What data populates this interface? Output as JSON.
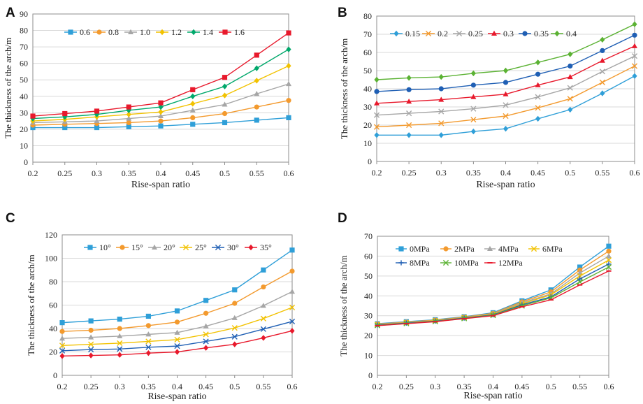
{
  "chart_data": [
    {
      "type": "line",
      "panel": "A",
      "title": "",
      "xlabel": "Rise-span ratio",
      "ylabel": "The thickness of the arch/m",
      "x": [
        0.2,
        0.25,
        0.3,
        0.35,
        0.4,
        0.45,
        0.5,
        0.55,
        0.6
      ],
      "xticks": [
        "0.2",
        "0.25",
        "0.3",
        "0.35",
        "0.4",
        "0.45",
        "0.5",
        "0.55",
        "0.6"
      ],
      "ylim": [
        0,
        90
      ],
      "yticks": [
        0,
        10,
        20,
        30,
        40,
        50,
        60,
        70,
        80,
        90
      ],
      "legend_position": "top-left",
      "series": [
        {
          "name": "0.6",
          "color": "#2f9fd8",
          "marker": "square",
          "values": [
            21,
            21,
            21,
            21.5,
            22,
            23,
            24,
            25.5,
            27
          ]
        },
        {
          "name": "0.8",
          "color": "#f39a2e",
          "marker": "circle",
          "values": [
            22.5,
            23,
            23.5,
            24,
            25,
            27,
            29.5,
            33.5,
            37.5
          ]
        },
        {
          "name": "1.0",
          "color": "#a6a6a6",
          "marker": "triangle",
          "values": [
            24,
            24.5,
            25,
            26.5,
            28,
            31.5,
            35,
            41.5,
            47.5
          ]
        },
        {
          "name": "1.2",
          "color": "#f2c200",
          "marker": "diamond",
          "values": [
            25,
            26,
            27.5,
            29,
            30.5,
            35.5,
            40.5,
            49.5,
            58.5
          ]
        },
        {
          "name": "1.4",
          "color": "#00a86b",
          "marker": "diamond",
          "values": [
            26.5,
            27.5,
            29,
            31.5,
            33.5,
            40,
            46,
            57,
            68.5
          ]
        },
        {
          "name": "1.6",
          "color": "#e8192c",
          "marker": "square",
          "values": [
            28,
            29.5,
            31,
            33.5,
            36,
            44,
            51.5,
            65,
            78.5
          ]
        }
      ]
    },
    {
      "type": "line",
      "panel": "B",
      "title": "",
      "xlabel": "Rise-span  ratio",
      "ylabel": "The thickness of the arch/m",
      "x": [
        0.2,
        0.25,
        0.3,
        0.35,
        0.4,
        0.45,
        0.5,
        0.55,
        0.6
      ],
      "xticks": [
        "0.2",
        "0.25",
        "0.3",
        "0.35",
        "0.4",
        "0.45",
        "0.5",
        "0.55",
        "0.6"
      ],
      "ylim": [
        0,
        80
      ],
      "yticks": [
        0,
        10,
        20,
        30,
        40,
        50,
        60,
        70,
        80
      ],
      "legend_position": "top-left",
      "series": [
        {
          "name": "0.15",
          "color": "#2f9fd8",
          "marker": "diamond",
          "values": [
            14.5,
            14.5,
            14.5,
            16.5,
            18,
            23.5,
            28.5,
            37.5,
            47
          ]
        },
        {
          "name": "0.2",
          "color": "#f39a2e",
          "marker": "x",
          "values": [
            19,
            20,
            21,
            23,
            25,
            29.5,
            34.5,
            43.5,
            52.5
          ]
        },
        {
          "name": "0.25",
          "color": "#a6a6a6",
          "marker": "x",
          "values": [
            25.5,
            26.5,
            27.5,
            29,
            31,
            35.5,
            40.5,
            49.5,
            58
          ]
        },
        {
          "name": "0.3",
          "color": "#e8192c",
          "marker": "triangle",
          "values": [
            32,
            33,
            34,
            35.5,
            37,
            42,
            46.5,
            55.5,
            63.5
          ]
        },
        {
          "name": "0.35",
          "color": "#1f5fb4",
          "marker": "circle",
          "values": [
            38.5,
            39.5,
            40,
            42,
            43.5,
            48,
            52.5,
            61,
            69.5
          ]
        },
        {
          "name": "0.4",
          "color": "#5bb233",
          "marker": "diamond",
          "values": [
            45,
            46,
            46.5,
            48.5,
            50,
            54.5,
            59,
            67,
            75.5
          ]
        }
      ]
    },
    {
      "type": "line",
      "panel": "C",
      "title": "",
      "xlabel": "Rise-span  ratio",
      "ylabel": "The thickness of the arch/m",
      "x": [
        0.2,
        0.25,
        0.3,
        0.35,
        0.4,
        0.45,
        0.5,
        0.55,
        0.6
      ],
      "xticks": [
        "0.2",
        "0.25",
        "0.3",
        "0.35",
        "0.4",
        "0.45",
        "0.5",
        "0.55",
        "0.6"
      ],
      "ylim": [
        0,
        120
      ],
      "yticks": [
        0,
        20,
        40,
        60,
        80,
        100,
        120
      ],
      "legend_position": "top-left",
      "series": [
        {
          "name": "10°",
          "color": "#2f9fd8",
          "marker": "square",
          "values": [
            45,
            46.5,
            48,
            50.5,
            55,
            64,
            73,
            90,
            107
          ]
        },
        {
          "name": "15°",
          "color": "#f39a2e",
          "marker": "circle",
          "values": [
            37.5,
            38.5,
            40,
            42.5,
            45.5,
            53,
            61.5,
            75.5,
            89
          ]
        },
        {
          "name": "20°",
          "color": "#a6a6a6",
          "marker": "triangle",
          "values": [
            31.5,
            32.5,
            33.5,
            35,
            36.5,
            42,
            49,
            59.5,
            71.5
          ]
        },
        {
          "name": "25°",
          "color": "#f2c200",
          "marker": "x",
          "values": [
            25.5,
            26.5,
            27.5,
            29,
            30.5,
            35,
            40.5,
            48.5,
            58
          ]
        },
        {
          "name": "30°",
          "color": "#1f5fb4",
          "marker": "x",
          "values": [
            21,
            22,
            22.5,
            24,
            25,
            29,
            33,
            39.5,
            46
          ]
        },
        {
          "name": "35°",
          "color": "#e8192c",
          "marker": "diamond",
          "values": [
            16.5,
            17,
            17.5,
            19,
            20,
            23.5,
            26.5,
            32,
            38
          ]
        }
      ]
    },
    {
      "type": "line",
      "panel": "D",
      "title": "",
      "xlabel": "Rise-span ratio",
      "ylabel": "The thickness of the arch/m",
      "x": [
        0.2,
        0.25,
        0.3,
        0.35,
        0.4,
        0.45,
        0.5,
        0.55,
        0.6
      ],
      "xticks": [
        "0.2",
        "0.25",
        "0.3",
        "0.35",
        "0.4",
        "0.45",
        "0.5",
        "0.55",
        "0.6"
      ],
      "ylim": [
        0,
        70
      ],
      "yticks": [
        0,
        10,
        20,
        30,
        40,
        50,
        60,
        70
      ],
      "legend_position": "top-left",
      "series": [
        {
          "name": "0MPa",
          "color": "#2f9fd8",
          "marker": "square",
          "values": [
            26,
            27,
            28,
            29.5,
            31.5,
            37.5,
            43,
            54.5,
            65
          ]
        },
        {
          "name": "2MPa",
          "color": "#f39a2e",
          "marker": "circle",
          "values": [
            25.8,
            26.8,
            27.8,
            29.3,
            31.2,
            37,
            42,
            53,
            62.5
          ]
        },
        {
          "name": "4MPa",
          "color": "#a6a6a6",
          "marker": "triangle",
          "values": [
            25.6,
            26.6,
            27.6,
            29.1,
            30.9,
            36.5,
            41,
            51.5,
            60
          ]
        },
        {
          "name": "6MPa",
          "color": "#f2c200",
          "marker": "x",
          "values": [
            25.5,
            26.5,
            27.5,
            29,
            30.7,
            36,
            40.5,
            50,
            58
          ]
        },
        {
          "name": "8MPa",
          "color": "#1f5fb4",
          "marker": "plus",
          "values": [
            25.3,
            26.3,
            27.3,
            28.8,
            30.4,
            35.5,
            39.5,
            48.5,
            56
          ]
        },
        {
          "name": "10MPa",
          "color": "#5bb233",
          "marker": "x",
          "values": [
            25.1,
            26.1,
            27.1,
            28.6,
            30.2,
            35,
            39,
            47,
            54.5
          ]
        },
        {
          "name": "12MPa",
          "color": "#e8192c",
          "marker": "dash",
          "values": [
            25,
            26,
            27,
            28.5,
            30,
            34.5,
            38,
            45.5,
            52.5
          ]
        }
      ]
    }
  ]
}
